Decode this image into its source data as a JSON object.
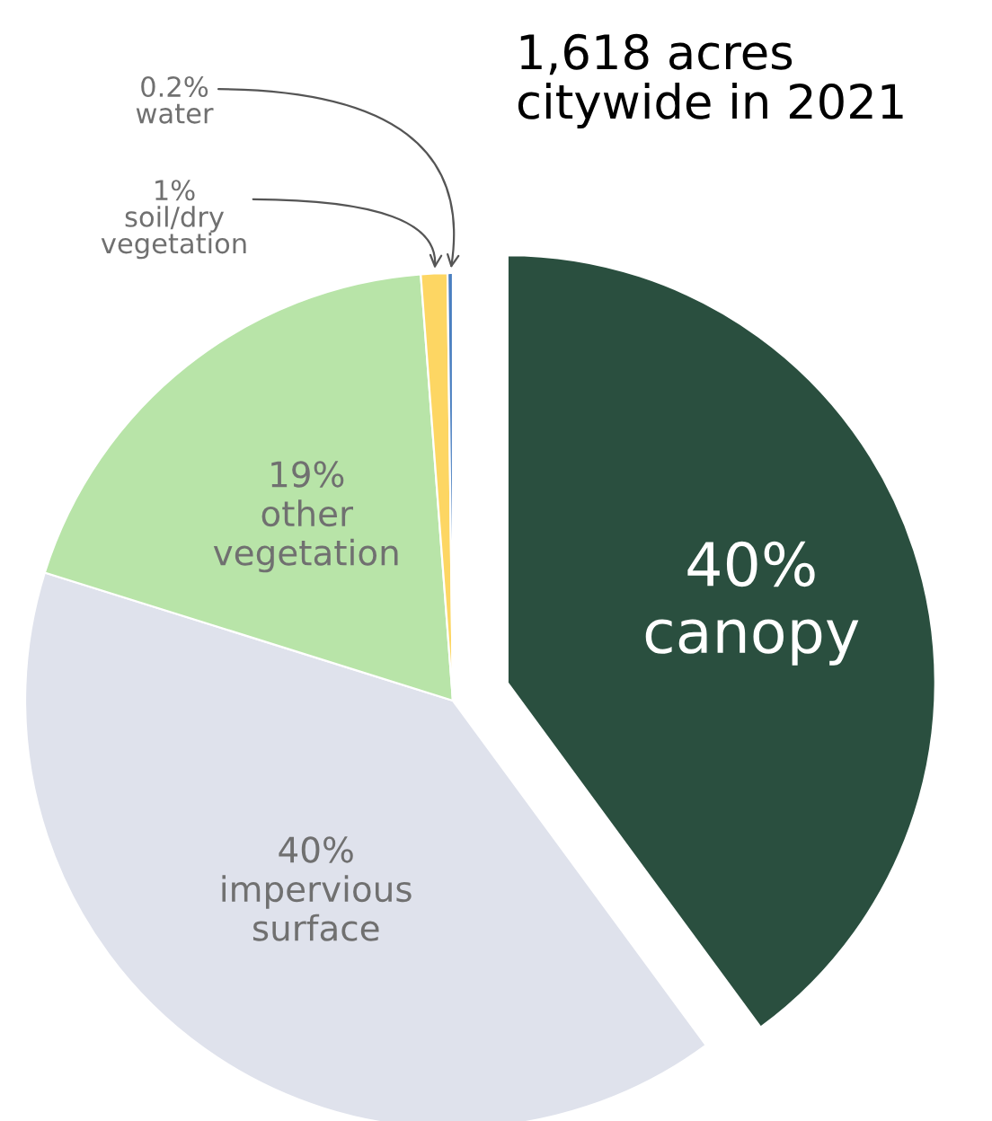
{
  "chart_data": {
    "type": "pie",
    "title": "1,618 acres\ncitywide in 2021",
    "categories": [
      "canopy",
      "impervious\nsurface",
      "other\nvegetation",
      "soil/dry\nvegetation",
      "water"
    ],
    "values": [
      40,
      40,
      19,
      1,
      0.2
    ],
    "colors": [
      "#2a4f3f",
      "#dfe2ec",
      "#b8e4a8",
      "#fdd663",
      "#4a7fc0"
    ],
    "value_labels": [
      "40%",
      "40%",
      "19%",
      "1%",
      "0.2%"
    ]
  }
}
